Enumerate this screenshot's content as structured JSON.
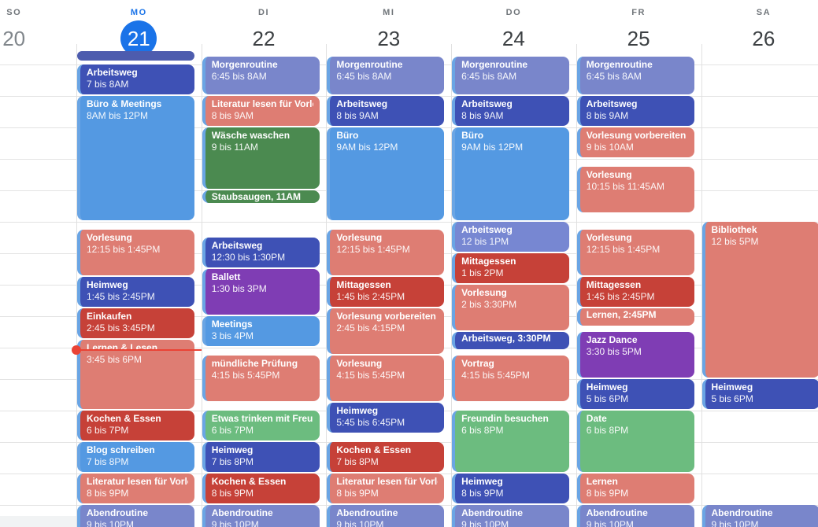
{
  "palette": {
    "flamingo": "#de7d73",
    "red": "#c64138",
    "indigo": "#3e51b5",
    "lavender": "#7986cb",
    "periwinkle": "#7787d2",
    "blue": "#5499e2",
    "green": "#6cbc7f",
    "green_dark": "#4b8a50",
    "grape": "#7f3db4",
    "cutoff": "#4d5cae",
    "strip": "#6aa5e4",
    "today_accent": "#1a73e8",
    "now_line": "#ea4335",
    "weekday_label": "#70757a",
    "date_number": "#3c4043",
    "muted_date": "#80868b",
    "grid_line": "#e3e3e3"
  },
  "now": {
    "day": "MO",
    "time": 16.05
  },
  "days": [
    {
      "abbr": "SO",
      "date": "20",
      "today": false,
      "muted": true,
      "events": []
    },
    {
      "abbr": "MO",
      "date": "21",
      "today": true,
      "muted": false,
      "events": [
        {
          "title": "",
          "time": "",
          "start": 6.58,
          "end": 6.93,
          "color": "cutoff",
          "cutoff": true
        },
        {
          "title": "Arbeitsweg",
          "time": "7 bis 8AM",
          "start": 7,
          "end": 8,
          "color": "indigo"
        },
        {
          "title": "Büro & Meetings",
          "time": "8AM bis 12PM",
          "start": 8,
          "end": 12,
          "color": "blue"
        },
        {
          "title": "Vorlesung",
          "time": "12:15 bis 1:45PM",
          "start": 12.25,
          "end": 13.75,
          "color": "flamingo"
        },
        {
          "title": "Heimweg",
          "time": "1:45 bis 2:45PM",
          "start": 13.75,
          "end": 14.75,
          "color": "indigo"
        },
        {
          "title": "Einkaufen",
          "time": "2:45 bis 3:45PM",
          "start": 14.75,
          "end": 15.75,
          "color": "red"
        },
        {
          "title": "Lernen & Lesen",
          "time": "3:45 bis 6PM",
          "start": 15.75,
          "end": 18,
          "color": "flamingo"
        },
        {
          "title": "Kochen & Essen",
          "time": "6 bis 7PM",
          "start": 18,
          "end": 19,
          "color": "red"
        },
        {
          "title": "Blog schreiben",
          "time": "7 bis 8PM",
          "start": 19,
          "end": 20,
          "color": "blue"
        },
        {
          "title": "Literatur lesen für Vorlesung",
          "time": "8 bis 9PM",
          "start": 20,
          "end": 21,
          "color": "flamingo"
        },
        {
          "title": "Abendroutine",
          "time": "9 bis 10PM",
          "start": 21,
          "end": 22,
          "color": "lavender"
        }
      ]
    },
    {
      "abbr": "DI",
      "date": "22",
      "today": false,
      "muted": false,
      "events": [
        {
          "title": "Morgenroutine",
          "time": "6:45 bis 8AM",
          "start": 6.75,
          "end": 8,
          "color": "lavender"
        },
        {
          "title": "Literatur lesen für Vorlesung",
          "time": "8 bis 9AM",
          "start": 8,
          "end": 9,
          "color": "flamingo"
        },
        {
          "title": "Wäsche waschen",
          "time": "9 bis 11AM",
          "start": 9,
          "end": 11,
          "color": "green_dark"
        },
        {
          "title": "Staubsaugen",
          "time": "11AM",
          "start": 11,
          "end": 11.45,
          "color": "green_dark",
          "inline": true
        },
        {
          "title": "Arbeitsweg",
          "time": "12:30 bis 1:30PM",
          "start": 12.5,
          "end": 13.5,
          "color": "indigo"
        },
        {
          "title": "Ballett",
          "time": "1:30 bis 3PM",
          "start": 13.5,
          "end": 15,
          "color": "grape"
        },
        {
          "title": "Meetings",
          "time": "3 bis 4PM",
          "start": 15,
          "end": 16,
          "color": "blue"
        },
        {
          "title": "mündliche Prüfung",
          "time": "4:15 bis 5:45PM",
          "start": 16.25,
          "end": 17.75,
          "color": "flamingo"
        },
        {
          "title": "Etwas trinken mit Freunden",
          "time": "6 bis 7PM",
          "start": 18,
          "end": 19,
          "color": "green"
        },
        {
          "title": "Heimweg",
          "time": "7 bis 8PM",
          "start": 19,
          "end": 20,
          "color": "indigo"
        },
        {
          "title": "Kochen & Essen",
          "time": "8 bis 9PM",
          "start": 20,
          "end": 21,
          "color": "red"
        },
        {
          "title": "Abendroutine",
          "time": "9 bis 10PM",
          "start": 21,
          "end": 22,
          "color": "lavender"
        }
      ]
    },
    {
      "abbr": "MI",
      "date": "23",
      "today": false,
      "muted": false,
      "events": [
        {
          "title": "Morgenroutine",
          "time": "6:45 bis 8AM",
          "start": 6.75,
          "end": 8,
          "color": "lavender"
        },
        {
          "title": "Arbeitsweg",
          "time": "8 bis 9AM",
          "start": 8,
          "end": 9,
          "color": "indigo"
        },
        {
          "title": "Büro",
          "time": "9AM bis 12PM",
          "start": 9,
          "end": 12,
          "color": "blue"
        },
        {
          "title": "Vorlesung",
          "time": "12:15 bis 1:45PM",
          "start": 12.25,
          "end": 13.75,
          "color": "flamingo"
        },
        {
          "title": "Mittagessen",
          "time": "1:45 bis 2:45PM",
          "start": 13.75,
          "end": 14.75,
          "color": "red"
        },
        {
          "title": "Vorlesung vorbereiten",
          "time": "2:45 bis 4:15PM",
          "start": 14.75,
          "end": 16.25,
          "color": "flamingo"
        },
        {
          "title": "Vorlesung",
          "time": "4:15 bis 5:45PM",
          "start": 16.25,
          "end": 17.75,
          "color": "flamingo"
        },
        {
          "title": "Heimweg",
          "time": "5:45 bis 6:45PM",
          "start": 17.75,
          "end": 18.75,
          "color": "indigo"
        },
        {
          "title": "Kochen & Essen",
          "time": "7 bis 8PM",
          "start": 19,
          "end": 20,
          "color": "red"
        },
        {
          "title": "Literatur lesen für Vorlesung",
          "time": "8 bis 9PM",
          "start": 20,
          "end": 21,
          "color": "flamingo"
        },
        {
          "title": "Abendroutine",
          "time": "9 bis 10PM",
          "start": 21,
          "end": 22,
          "color": "lavender"
        }
      ]
    },
    {
      "abbr": "DO",
      "date": "24",
      "today": false,
      "muted": false,
      "events": [
        {
          "title": "Morgenroutine",
          "time": "6:45 bis 8AM",
          "start": 6.75,
          "end": 8,
          "color": "lavender"
        },
        {
          "title": "Arbeitsweg",
          "time": "8 bis 9AM",
          "start": 8,
          "end": 9,
          "color": "indigo"
        },
        {
          "title": "Büro",
          "time": "9AM bis 12PM",
          "start": 9,
          "end": 12,
          "color": "blue"
        },
        {
          "title": "Arbeitsweg",
          "time": "12 bis 1PM",
          "start": 12,
          "end": 13,
          "color": "periwinkle"
        },
        {
          "title": "Mittagessen",
          "time": "1 bis 2PM",
          "start": 13,
          "end": 14,
          "color": "red"
        },
        {
          "title": "Vorlesung",
          "time": "2 bis 3:30PM",
          "start": 14,
          "end": 15.5,
          "color": "flamingo"
        },
        {
          "title": "Arbeitsweg",
          "time": "3:30PM",
          "start": 15.5,
          "end": 16.1,
          "color": "indigo",
          "inline": true
        },
        {
          "title": "Vortrag",
          "time": "4:15 bis 5:45PM",
          "start": 16.25,
          "end": 17.75,
          "color": "flamingo"
        },
        {
          "title": "Freundin besuchen",
          "time": "6 bis 8PM",
          "start": 18,
          "end": 20,
          "color": "green"
        },
        {
          "title": "Heimweg",
          "time": "8 bis 9PM",
          "start": 20,
          "end": 21,
          "color": "indigo"
        },
        {
          "title": "Abendroutine",
          "time": "9 bis 10PM",
          "start": 21,
          "end": 22,
          "color": "lavender"
        }
      ]
    },
    {
      "abbr": "FR",
      "date": "25",
      "today": false,
      "muted": false,
      "events": [
        {
          "title": "Morgenroutine",
          "time": "6:45 bis 8AM",
          "start": 6.75,
          "end": 8,
          "color": "lavender"
        },
        {
          "title": "Arbeitsweg",
          "time": "8 bis 9AM",
          "start": 8,
          "end": 9,
          "color": "indigo"
        },
        {
          "title": "Vorlesung vorbereiten",
          "time": "9 bis 10AM",
          "start": 9,
          "end": 10,
          "color": "flamingo"
        },
        {
          "title": "Vorlesung",
          "time": "10:15 bis 11:45AM",
          "start": 10.25,
          "end": 11.75,
          "color": "flamingo"
        },
        {
          "title": "Vorlesung",
          "time": "12:15 bis 1:45PM",
          "start": 12.25,
          "end": 13.75,
          "color": "flamingo"
        },
        {
          "title": "Mittagessen",
          "time": "1:45 bis 2:45PM",
          "start": 13.75,
          "end": 14.75,
          "color": "red"
        },
        {
          "title": "Lernen",
          "time": "2:45PM",
          "start": 14.75,
          "end": 15.35,
          "color": "flamingo",
          "inline": true
        },
        {
          "title": "Jazz Dance",
          "time": "3:30 bis 5PM",
          "start": 15.5,
          "end": 17,
          "color": "grape"
        },
        {
          "title": "Heimweg",
          "time": "5 bis 6PM",
          "start": 17,
          "end": 18,
          "color": "indigo"
        },
        {
          "title": "Date",
          "time": "6 bis 8PM",
          "start": 18,
          "end": 20,
          "color": "green"
        },
        {
          "title": "Lernen",
          "time": "8 bis 9PM",
          "start": 20,
          "end": 21,
          "color": "flamingo"
        },
        {
          "title": "Abendroutine",
          "time": "9 bis 10PM",
          "start": 21,
          "end": 22,
          "color": "lavender"
        }
      ]
    },
    {
      "abbr": "SA",
      "date": "26",
      "today": false,
      "muted": false,
      "events": [
        {
          "title": "Bibliothek",
          "time": "12 bis 5PM",
          "start": 12,
          "end": 17,
          "color": "flamingo"
        },
        {
          "title": "Heimweg",
          "time": "5 bis 6PM",
          "start": 17,
          "end": 18,
          "color": "indigo"
        },
        {
          "title": "Abendroutine",
          "time": "9 bis 10PM",
          "start": 21,
          "end": 22,
          "color": "lavender"
        }
      ]
    }
  ]
}
